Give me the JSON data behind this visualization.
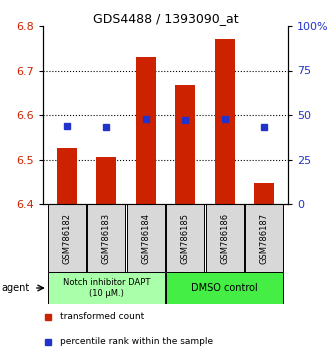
{
  "title": "GDS4488 / 1393090_at",
  "samples": [
    "GSM786182",
    "GSM786183",
    "GSM786184",
    "GSM786185",
    "GSM786186",
    "GSM786187"
  ],
  "red_values": [
    6.526,
    6.505,
    6.73,
    6.668,
    6.771,
    6.447
  ],
  "blue_percentiles": [
    44,
    43,
    48,
    47,
    48,
    43
  ],
  "ylim_left": [
    6.4,
    6.8
  ],
  "ylim_right": [
    0,
    100
  ],
  "y_ticks_left": [
    6.4,
    6.5,
    6.6,
    6.7,
    6.8
  ],
  "y_ticks_right": [
    0,
    25,
    50,
    75,
    100
  ],
  "y_tick_labels_right": [
    "0",
    "25",
    "50",
    "75",
    "100%"
  ],
  "bar_color": "#cc2200",
  "blue_color": "#2233cc",
  "bar_bottom": 6.4,
  "bar_width": 0.5,
  "group1_label": "Notch inhibitor DAPT\n(10 μM.)",
  "group2_label": "DMSO control",
  "group1_color": "#aaffaa",
  "group2_color": "#44ee44",
  "group1_indices": [
    0,
    1,
    2
  ],
  "group2_indices": [
    3,
    4,
    5
  ],
  "legend_red_label": "transformed count",
  "legend_blue_label": "percentile rank within the sample",
  "agent_label": "agent"
}
